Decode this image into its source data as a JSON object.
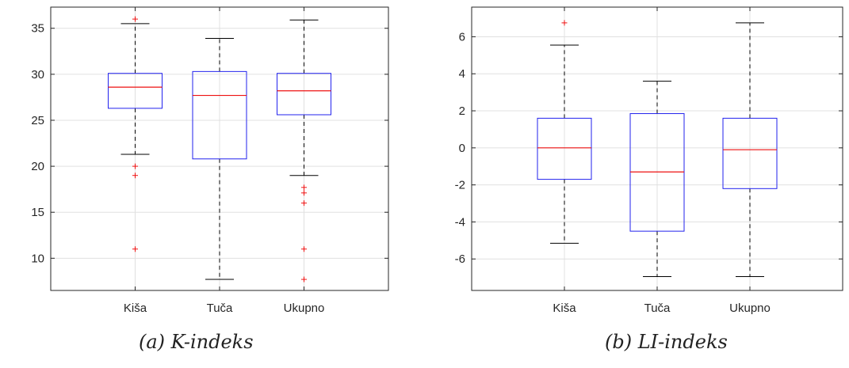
{
  "chart_data": [
    {
      "type": "box",
      "caption": "(a) K-indeks",
      "categories": [
        "Kiša",
        "Tuča",
        "Ukupno"
      ],
      "ylim": [
        6.5,
        37.3
      ],
      "yticks": [
        10,
        15,
        20,
        25,
        30,
        35
      ],
      "ytick_labels": [
        "10",
        "15",
        "20",
        "25",
        "30",
        "35"
      ],
      "grid": true,
      "boxes": [
        {
          "whisker_low": 21.3,
          "q1": 26.3,
          "median": 28.6,
          "q3": 30.1,
          "whisker_high": 35.5,
          "outliers": [
            36.0,
            20.0,
            19.0,
            11.0
          ]
        },
        {
          "whisker_low": 7.7,
          "q1": 20.8,
          "median": 27.7,
          "q3": 30.3,
          "whisker_high": 33.9,
          "outliers": []
        },
        {
          "whisker_low": 19.0,
          "q1": 25.6,
          "median": 28.2,
          "q3": 30.1,
          "whisker_high": 35.9,
          "outliers": [
            17.7,
            17.1,
            16.0,
            11.0,
            7.7
          ]
        }
      ],
      "colors": {
        "box": "#2222ee",
        "median": "#ee1111",
        "whisker": "#000000",
        "outlier": "#ee1111",
        "grid": "#e0e0e0"
      }
    },
    {
      "type": "box",
      "caption": "(b) LI-indeks",
      "categories": [
        "Kiša",
        "Tuča",
        "Ukupno"
      ],
      "ylim": [
        -7.7,
        7.6
      ],
      "yticks": [
        -6,
        -4,
        -2,
        0,
        2,
        4,
        6
      ],
      "ytick_labels": [
        "-6",
        "-4",
        "-2",
        "0",
        "2",
        "4",
        "6"
      ],
      "grid": true,
      "boxes": [
        {
          "whisker_low": -5.15,
          "q1": -1.7,
          "median": 0.0,
          "q3": 1.6,
          "whisker_high": 5.55,
          "outliers": [
            6.75
          ]
        },
        {
          "whisker_low": -6.95,
          "q1": -4.5,
          "median": -1.3,
          "q3": 1.85,
          "whisker_high": 3.6,
          "outliers": []
        },
        {
          "whisker_low": -6.95,
          "q1": -2.2,
          "median": -0.1,
          "q3": 1.6,
          "whisker_high": 6.75,
          "outliers": []
        }
      ],
      "colors": {
        "box": "#2222ee",
        "median": "#ee1111",
        "whisker": "#000000",
        "outlier": "#ee1111",
        "grid": "#e0e0e0"
      }
    }
  ]
}
